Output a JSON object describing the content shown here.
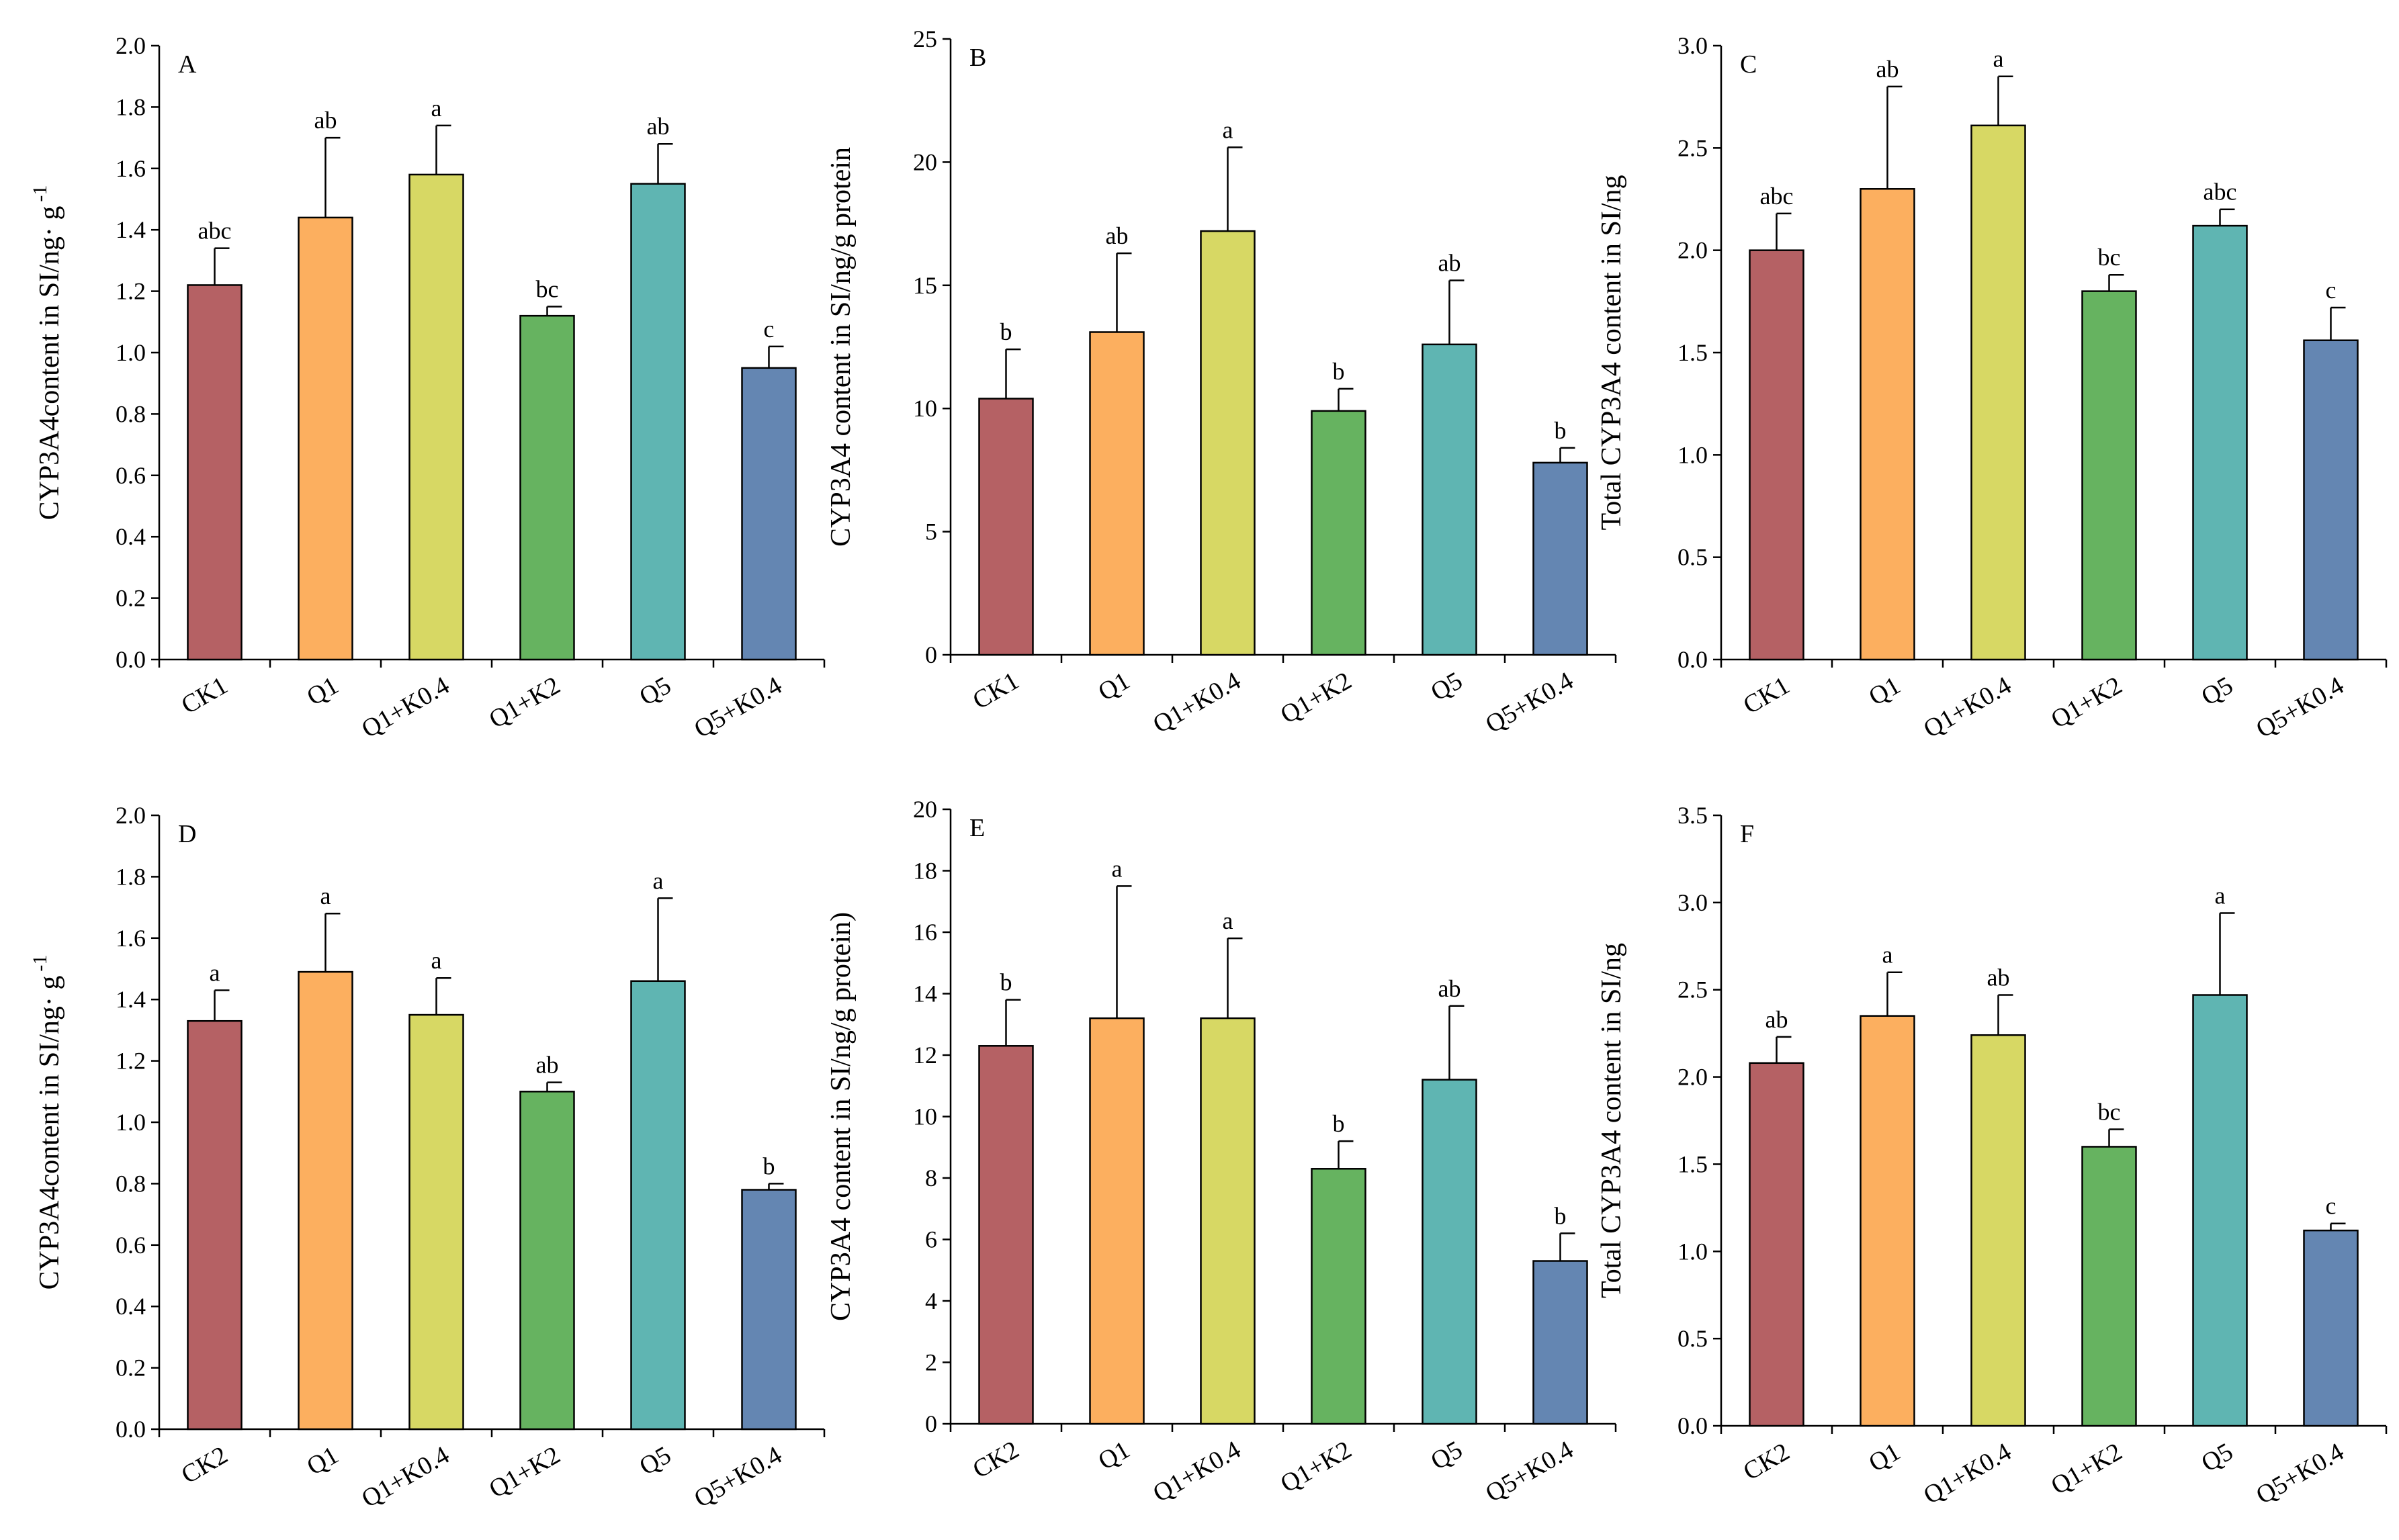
{
  "colors": {
    "CK": "#b56164",
    "Q1": "#fcaf5f",
    "Q1+K0.4": "#d7d864",
    "Q1+K2": "#66b360",
    "Q5": "#5fb5b2",
    "Q5+K0.4": "#6486b2",
    "axis": "#000000"
  },
  "chart_data": [
    {
      "panel": "A",
      "type": "bar",
      "ylabel": "CYP3A4content in SI/ng· g",
      "ylabel_superscript": "-1",
      "xlabel": "",
      "ylim": [
        0,
        2.0
      ],
      "yticks": [
        "0.0",
        "0.2",
        "0.4",
        "0.6",
        "0.8",
        "1.0",
        "1.2",
        "1.4",
        "1.6",
        "1.8",
        "2.0"
      ],
      "categories": [
        "CK1",
        "Q1",
        "Q1+K0.4",
        "Q1+K2",
        "Q5",
        "Q5+K0.4"
      ],
      "color_keys": [
        "CK",
        "Q1",
        "Q1+K0.4",
        "Q1+K2",
        "Q5",
        "Q5+K0.4"
      ],
      "values": [
        1.22,
        1.44,
        1.58,
        1.12,
        1.55,
        0.95
      ],
      "errors": [
        0.12,
        0.26,
        0.16,
        0.03,
        0.13,
        0.07
      ],
      "significance": [
        "abc",
        "ab",
        "a",
        "bc",
        "ab",
        "c"
      ]
    },
    {
      "panel": "B",
      "type": "bar",
      "ylabel": "CYP3A4 content in SI/ng/g protein",
      "xlabel": "",
      "ylim": [
        0,
        25
      ],
      "yticks": [
        "0",
        "5",
        "10",
        "15",
        "20",
        "25"
      ],
      "categories": [
        "CK1",
        "Q1",
        "Q1+K0.4",
        "Q1+K2",
        "Q5",
        "Q5+K0.4"
      ],
      "color_keys": [
        "CK",
        "Q1",
        "Q1+K0.4",
        "Q1+K2",
        "Q5",
        "Q5+K0.4"
      ],
      "values": [
        10.4,
        13.1,
        17.2,
        9.9,
        12.6,
        7.8
      ],
      "errors": [
        2.0,
        3.2,
        3.4,
        0.9,
        2.6,
        0.6
      ],
      "significance": [
        "b",
        "ab",
        "a",
        "b",
        "ab",
        "b"
      ]
    },
    {
      "panel": "C",
      "type": "bar",
      "ylabel": "Total CYP3A4 content in SI/ng",
      "xlabel": "",
      "ylim": [
        0,
        3.0
      ],
      "yticks": [
        "0.0",
        "0.5",
        "1.0",
        "1.5",
        "2.0",
        "2.5",
        "3.0"
      ],
      "categories": [
        "CK1",
        "Q1",
        "Q1+K0.4",
        "Q1+K2",
        "Q5",
        "Q5+K0.4"
      ],
      "color_keys": [
        "CK",
        "Q1",
        "Q1+K0.4",
        "Q1+K2",
        "Q5",
        "Q5+K0.4"
      ],
      "values": [
        2.0,
        2.3,
        2.61,
        1.8,
        2.12,
        1.56
      ],
      "errors": [
        0.18,
        0.5,
        0.24,
        0.08,
        0.08,
        0.16
      ],
      "significance": [
        "abc",
        "ab",
        "a",
        "bc",
        "abc",
        "c"
      ]
    },
    {
      "panel": "D",
      "type": "bar",
      "ylabel": "CYP3A4content in SI/ng· g",
      "ylabel_superscript": "-1",
      "xlabel": "",
      "ylim": [
        0,
        2.0
      ],
      "yticks": [
        "0.0",
        "0.2",
        "0.4",
        "0.6",
        "0.8",
        "1.0",
        "1.2",
        "1.4",
        "1.6",
        "1.8",
        "2.0"
      ],
      "categories": [
        "CK2",
        "Q1",
        "Q1+K0.4",
        "Q1+K2",
        "Q5",
        "Q5+K0.4"
      ],
      "color_keys": [
        "CK",
        "Q1",
        "Q1+K0.4",
        "Q1+K2",
        "Q5",
        "Q5+K0.4"
      ],
      "values": [
        1.33,
        1.49,
        1.35,
        1.1,
        1.46,
        0.78
      ],
      "errors": [
        0.1,
        0.19,
        0.12,
        0.03,
        0.27,
        0.02
      ],
      "significance": [
        "a",
        "a",
        "a",
        "ab",
        "a",
        "b"
      ]
    },
    {
      "panel": "E",
      "type": "bar",
      "ylabel": "CYP3A4 content in SI/ng/g protein)",
      "xlabel": "",
      "ylim": [
        0,
        20
      ],
      "yticks": [
        "0",
        "2",
        "4",
        "6",
        "8",
        "10",
        "12",
        "14",
        "16",
        "18",
        "20"
      ],
      "categories": [
        "CK2",
        "Q1",
        "Q1+K0.4",
        "Q1+K2",
        "Q5",
        "Q5+K0.4"
      ],
      "color_keys": [
        "CK",
        "Q1",
        "Q1+K0.4",
        "Q1+K2",
        "Q5",
        "Q5+K0.4"
      ],
      "values": [
        12.3,
        13.2,
        13.2,
        8.3,
        11.2,
        5.3
      ],
      "errors": [
        1.5,
        4.3,
        2.6,
        0.9,
        2.4,
        0.9
      ],
      "significance": [
        "b",
        "a",
        "a",
        "b",
        "ab",
        "b"
      ]
    },
    {
      "panel": "F",
      "type": "bar",
      "ylabel": "Total CYP3A4 content in SI/ng",
      "xlabel": "",
      "ylim": [
        0,
        3.5
      ],
      "yticks": [
        "0.0",
        "0.5",
        "1.0",
        "1.5",
        "2.0",
        "2.5",
        "3.0",
        "3.5"
      ],
      "categories": [
        "CK2",
        "Q1",
        "Q1+K0.4",
        "Q1+K2",
        "Q5",
        "Q5+K0.4"
      ],
      "color_keys": [
        "CK",
        "Q1",
        "Q1+K0.4",
        "Q1+K2",
        "Q5",
        "Q5+K0.4"
      ],
      "values": [
        2.08,
        2.35,
        2.24,
        1.6,
        2.47,
        1.12
      ],
      "errors": [
        0.15,
        0.25,
        0.23,
        0.1,
        0.47,
        0.04
      ],
      "significance": [
        "ab",
        "a",
        "ab",
        "bc",
        "a",
        "c"
      ]
    }
  ]
}
